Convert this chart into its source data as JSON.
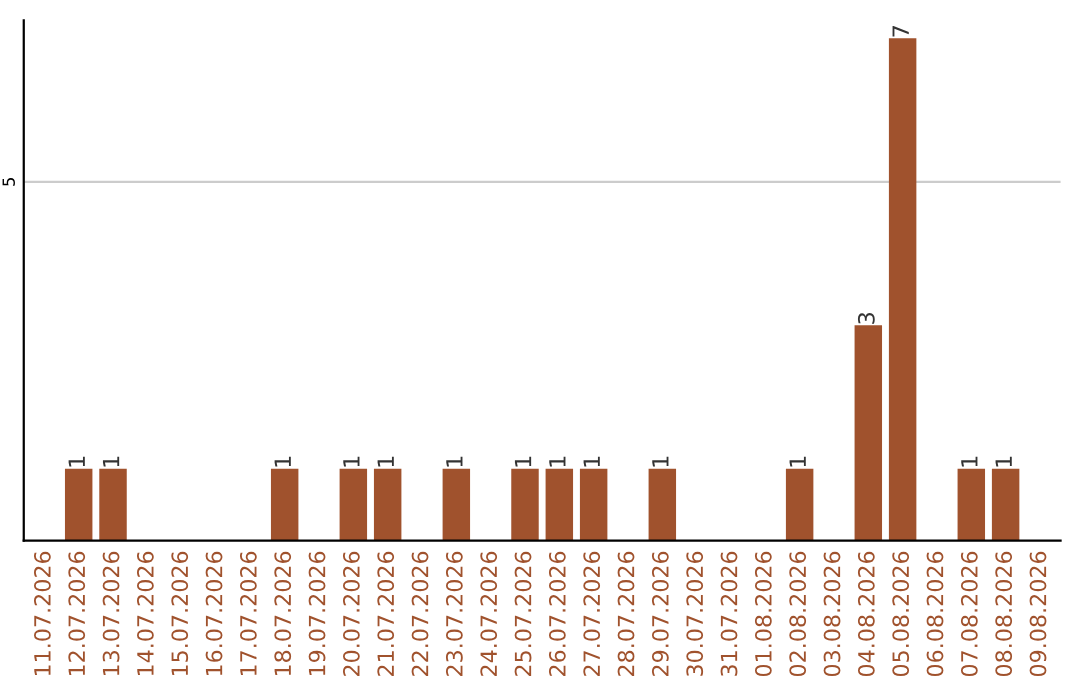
{
  "chart_data": {
    "type": "bar",
    "categories": [
      "11.07.2026",
      "12.07.2026",
      "13.07.2026",
      "14.07.2026",
      "15.07.2026",
      "16.07.2026",
      "17.07.2026",
      "18.07.2026",
      "19.07.2026",
      "20.07.2026",
      "21.07.2026",
      "22.07.2026",
      "23.07.2026",
      "24.07.2026",
      "25.07.2026",
      "26.07.2026",
      "27.07.2026",
      "28.07.2026",
      "29.07.2026",
      "30.07.2026",
      "31.07.2026",
      "01.08.2026",
      "02.08.2026",
      "03.08.2026",
      "04.08.2026",
      "05.08.2026",
      "06.08.2026",
      "07.08.2026",
      "08.08.2026",
      "09.08.2026"
    ],
    "values": [
      0,
      1,
      1,
      0,
      0,
      0,
      0,
      1,
      0,
      1,
      1,
      0,
      1,
      0,
      1,
      1,
      1,
      0,
      1,
      0,
      0,
      0,
      1,
      0,
      3,
      7,
      0,
      1,
      1,
      0
    ],
    "value_labels": [
      null,
      "1",
      "1",
      null,
      null,
      null,
      null,
      "1",
      null,
      "1",
      "1",
      null,
      "1",
      null,
      "1",
      "1",
      "1",
      null,
      "1",
      null,
      null,
      null,
      "1",
      null,
      "3",
      "7",
      null,
      "1",
      "1",
      null
    ],
    "color": "#a0522d",
    "ylim": [
      0,
      7.25
    ],
    "yticks": [
      5
    ],
    "grid": "y"
  }
}
